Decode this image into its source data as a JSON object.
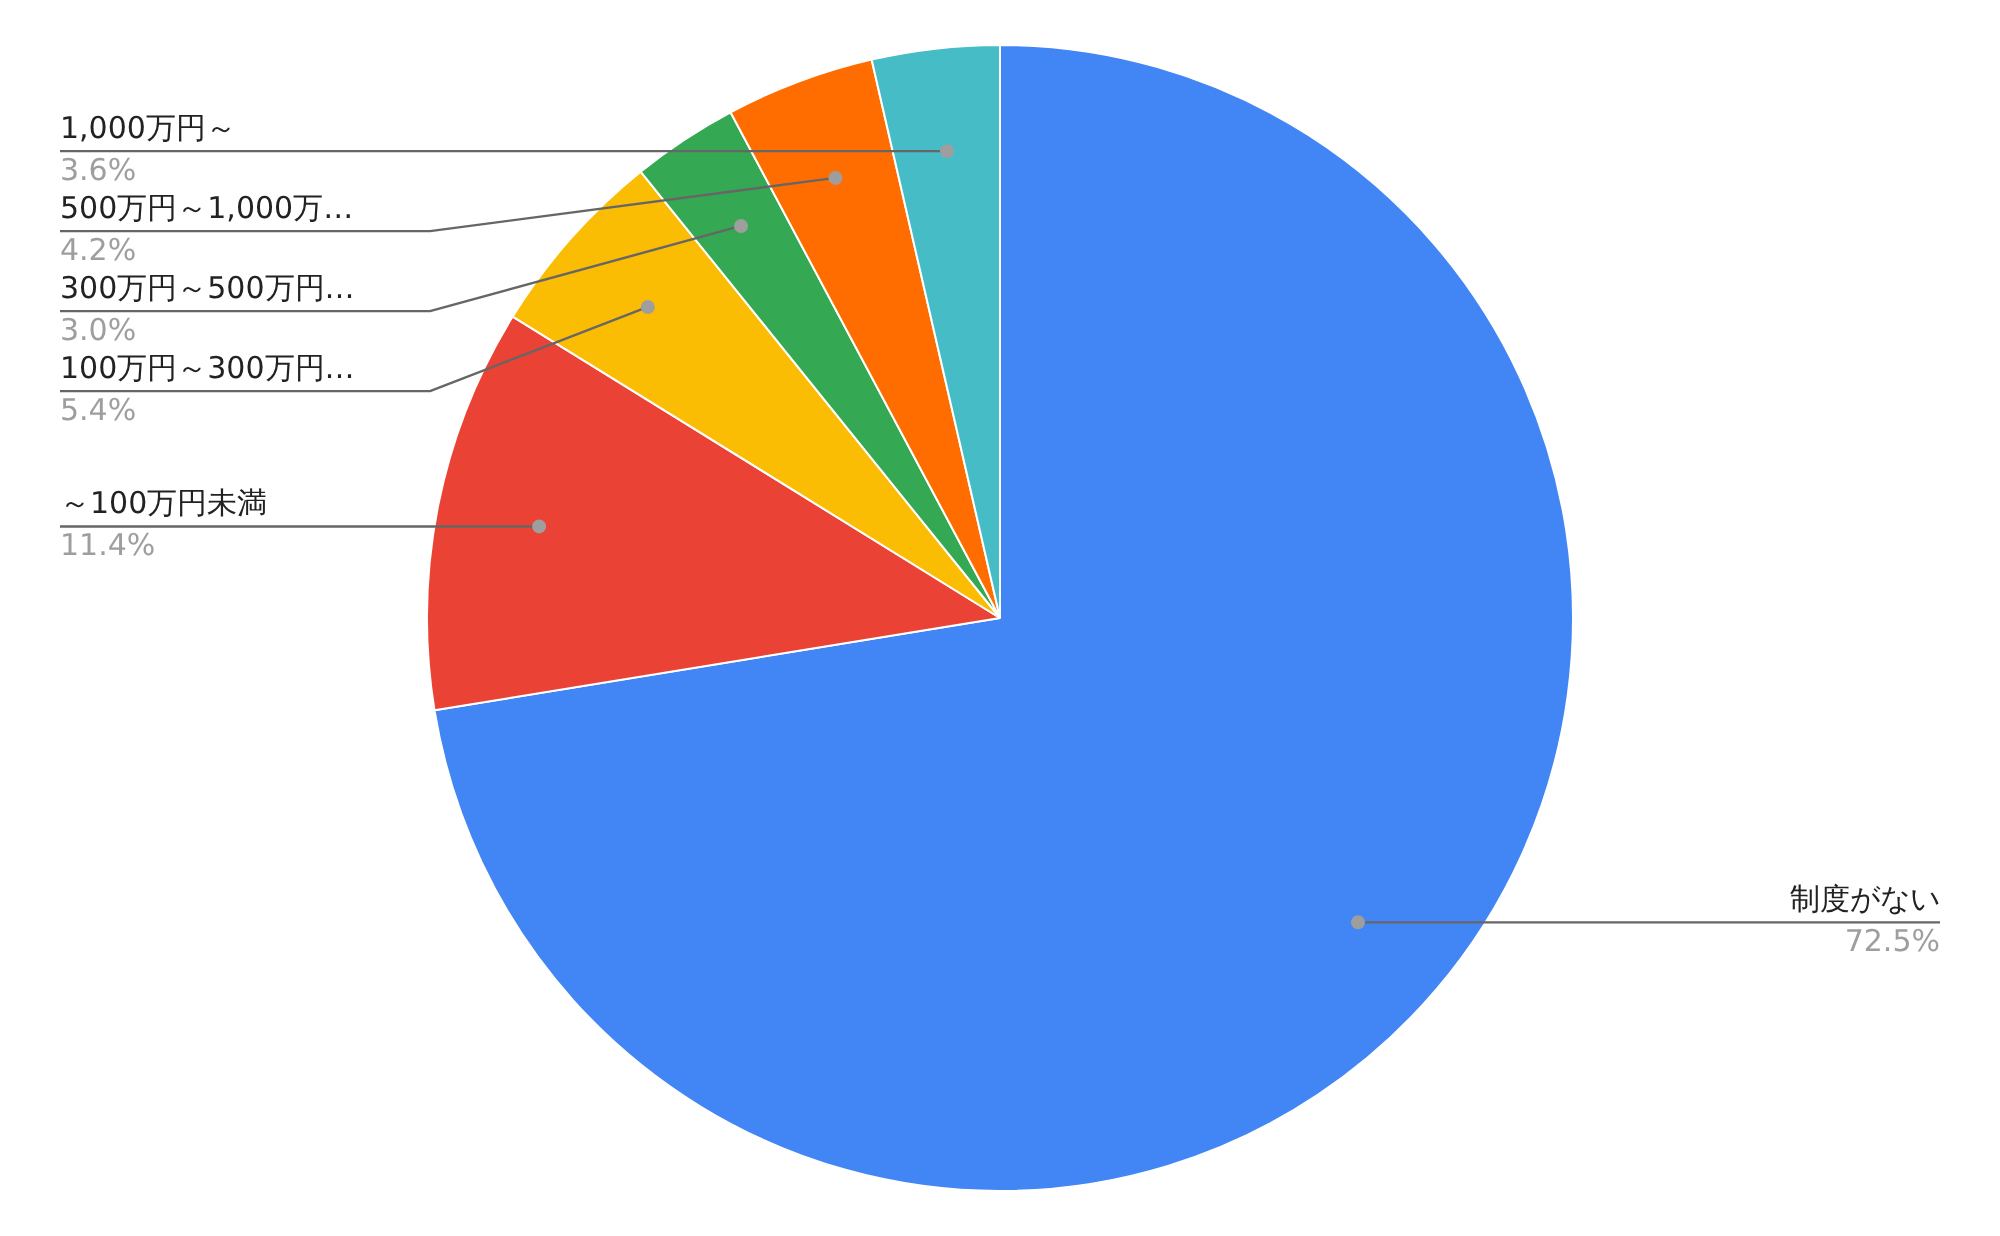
{
  "chart_data": {
    "type": "pie",
    "categories": [
      "制度がない",
      "～100万円未満",
      "100万円～300万円…",
      "300万円～500万円…",
      "500万円～1,000万…",
      "1,000万円～"
    ],
    "values": [
      72.5,
      11.4,
      5.4,
      3.0,
      4.2,
      3.6
    ],
    "colors": [
      "#4285f4",
      "#ea4335",
      "#fbbc04",
      "#34a853",
      "#ff6d01",
      "#46bdc6"
    ],
    "value_labels": [
      "72.5%",
      "11.4%",
      "5.4%",
      "3.0%",
      "4.2%",
      "3.6%"
    ],
    "legend": false
  }
}
